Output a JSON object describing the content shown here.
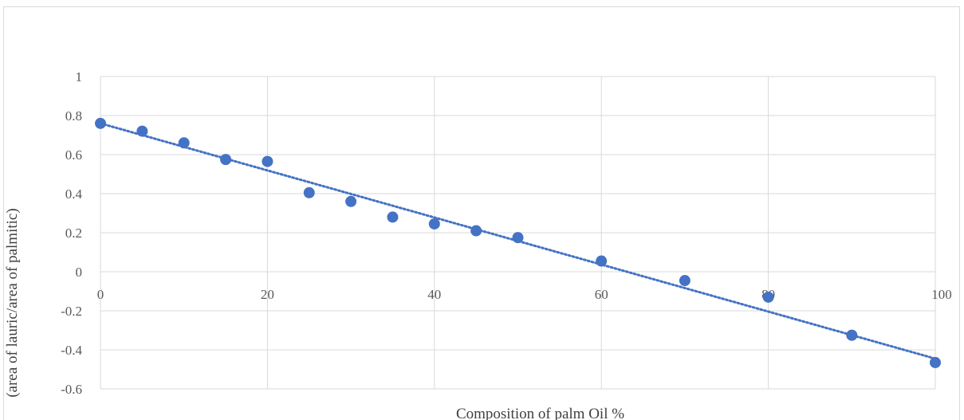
{
  "chart_data": {
    "type": "scatter",
    "title": "",
    "xlabel": "Composition of palm Oil %",
    "ylabel": "(area of lauric/area of palmitic)",
    "xlim": [
      0,
      100
    ],
    "ylim": [
      -0.6,
      1
    ],
    "x_ticks": [
      "0",
      "20",
      "40",
      "60",
      "80",
      "100"
    ],
    "y_ticks": [
      "1",
      "0.8",
      "0.6",
      "0.4",
      "0.2",
      "0",
      "-0.2",
      "-0.4",
      "-0.6"
    ],
    "grid": true,
    "legend": "none",
    "series": [
      {
        "x": [
          0,
          5,
          10,
          15,
          20,
          25,
          30,
          35,
          40,
          45,
          50,
          60,
          70,
          80,
          90,
          100
        ],
        "y": [
          0.76,
          0.72,
          0.66,
          0.575,
          0.565,
          0.405,
          0.36,
          0.28,
          0.245,
          0.21,
          0.175,
          0.055,
          -0.045,
          -0.13,
          -0.325,
          -0.465
        ],
        "color": "#4472c4"
      }
    ],
    "trendline": {
      "type": "linear",
      "style": "dotted",
      "color": "#4472c4",
      "x": [
        0,
        100
      ],
      "y": [
        0.76,
        -0.445
      ]
    }
  }
}
